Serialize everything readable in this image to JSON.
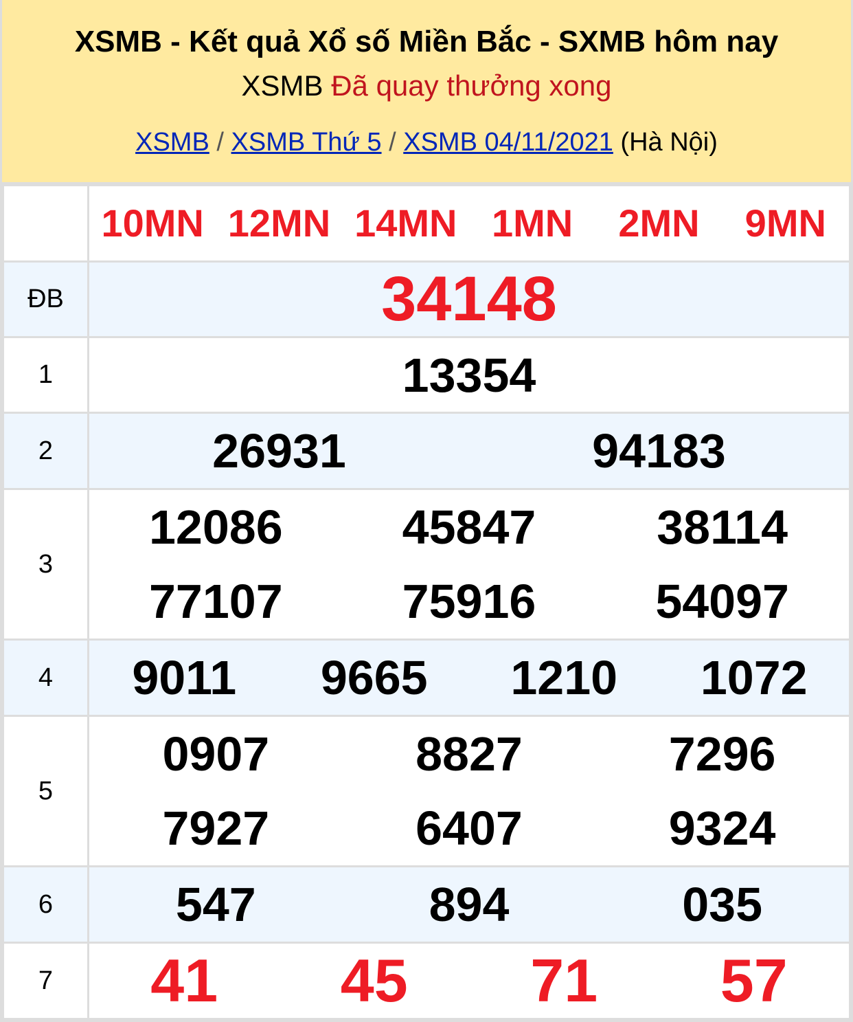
{
  "header": {
    "title": "XSMB - Kết quả Xổ số Miền Bắc - SXMB hôm nay",
    "status_prefix": "XSMB",
    "status": "Đã quay thưởng xong",
    "breadcrumb": [
      {
        "label": "XSMB"
      },
      {
        "label": "XSMB Thứ 5"
      },
      {
        "label": "XSMB 04/11/2021"
      }
    ],
    "breadcrumb_sep": "/",
    "region": "(Hà Nội)"
  },
  "codes": [
    "10MN",
    "12MN",
    "14MN",
    "1MN",
    "2MN",
    "9MN"
  ],
  "prizes": {
    "db": {
      "label": "ĐB",
      "values": [
        "34148"
      ]
    },
    "p1": {
      "label": "1",
      "values": [
        "13354"
      ]
    },
    "p2": {
      "label": "2",
      "values": [
        "26931",
        "94183"
      ]
    },
    "p3": {
      "label": "3",
      "values": [
        "12086",
        "45847",
        "38114",
        "77107",
        "75916",
        "54097"
      ]
    },
    "p4": {
      "label": "4",
      "values": [
        "9011",
        "9665",
        "1210",
        "1072"
      ]
    },
    "p5": {
      "label": "5",
      "values": [
        "0907",
        "8827",
        "7296",
        "7927",
        "6407",
        "9324"
      ]
    },
    "p6": {
      "label": "6",
      "values": [
        "547",
        "894",
        "035"
      ]
    },
    "p7": {
      "label": "7",
      "values": [
        "41",
        "45",
        "71",
        "57"
      ]
    }
  },
  "colors": {
    "header_bg": "#ffeaa0",
    "accent_red": "#ee1c25",
    "link": "#0026b8",
    "alt_row": "#eef6fe"
  }
}
